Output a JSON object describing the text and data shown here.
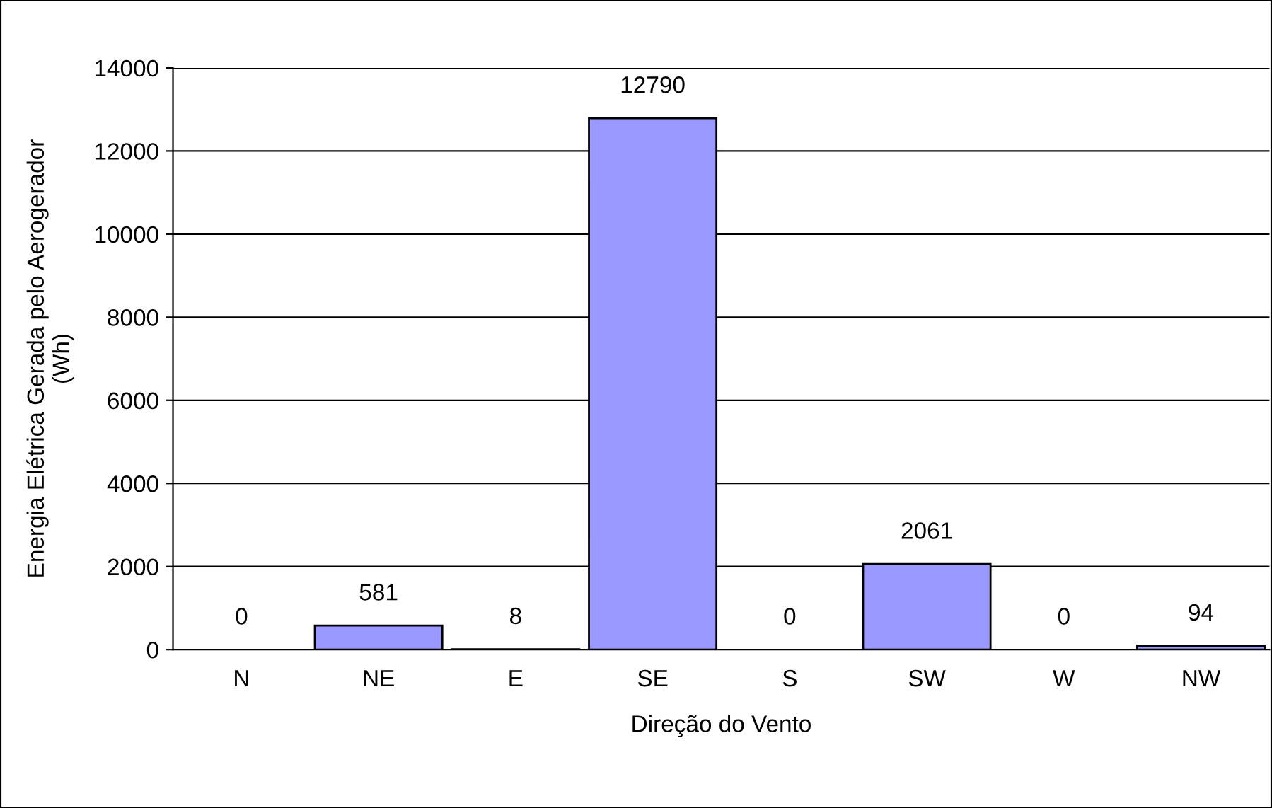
{
  "chart_data": {
    "type": "bar",
    "xlabel": "Direção do Vento",
    "ylabel": "Energia Elétrica Gerada pelo Aerogerador\n(Wh)",
    "categories": [
      "N",
      "NE",
      "E",
      "SE",
      "S",
      "SW",
      "W",
      "NW"
    ],
    "values": [
      0,
      581,
      8,
      12790,
      0,
      2061,
      0,
      94
    ],
    "color": "#9999ff",
    "ylim": [
      0,
      14000
    ],
    "yticks": [
      0,
      2000,
      4000,
      6000,
      8000,
      10000,
      12000,
      14000
    ],
    "grid": "y",
    "data_labels": true
  }
}
